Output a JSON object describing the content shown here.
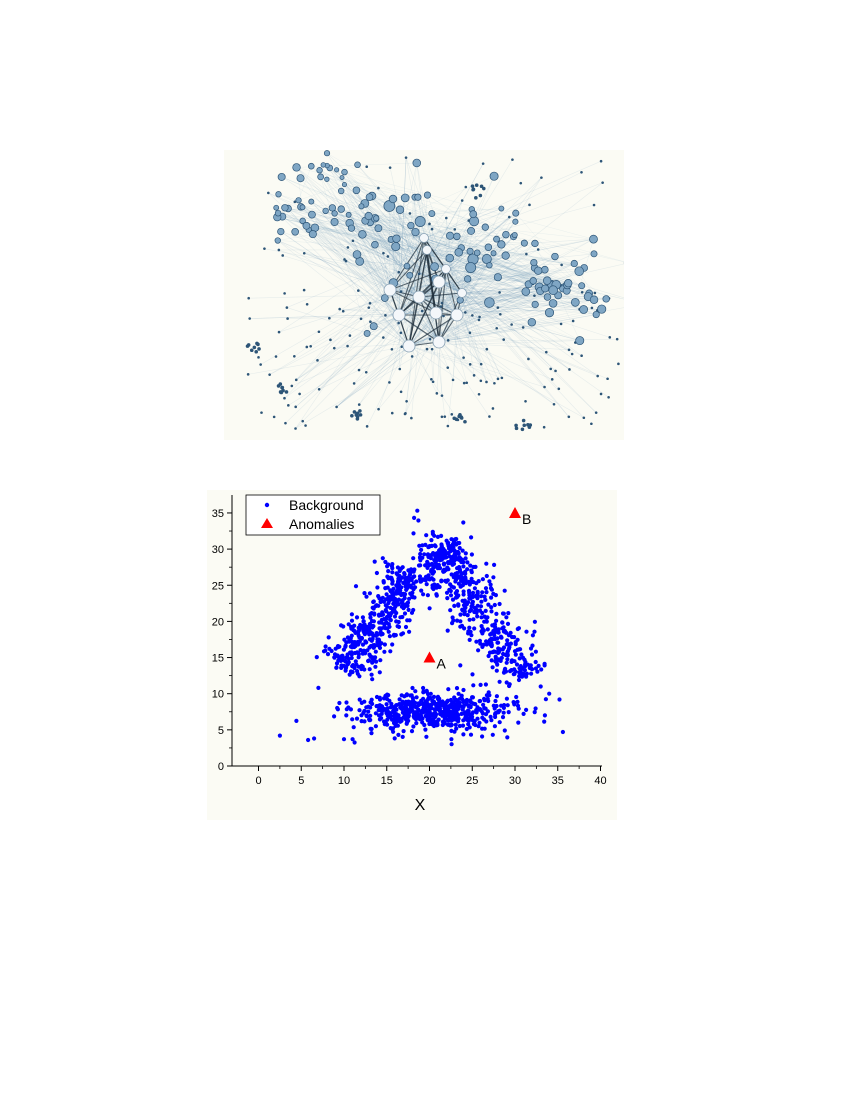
{
  "colors": {
    "page_background": "#ffffff",
    "figure_background": "#fbfbf4",
    "edge_blue": "#4f86ad",
    "node_fill": "#7fa6c4",
    "node_light": "#f4f7fa",
    "node_dark": "#2d5577",
    "background_points": "#0000ff",
    "anomaly_points": "#ff0000",
    "axis": "#000000"
  },
  "network_figure": {
    "type": "network graph",
    "labels": []
  },
  "chart_data": {
    "type": "scatter",
    "title": "",
    "xlabel": "X",
    "ylabel": "",
    "xlim": [
      -3,
      40
    ],
    "ylim": [
      0,
      37
    ],
    "xticks": [
      "0",
      "5",
      "10",
      "15",
      "20",
      "25",
      "30",
      "35",
      "40"
    ],
    "yticks": [
      "0",
      "5",
      "10",
      "15",
      "20",
      "25",
      "30",
      "35"
    ],
    "grid": false,
    "legend_position": "top-left",
    "series": [
      {
        "name": "Background",
        "marker": "circle",
        "color": "#0000ff",
        "distribution": {
          "left_arm": {
            "from": [
              10,
              13
            ],
            "to": [
              18,
              27
            ],
            "count": 430
          },
          "right_arm": {
            "from": [
              21,
              30
            ],
            "to": [
              31,
              12
            ],
            "count": 430
          },
          "top_peak": {
            "center": [
              21,
              29
            ],
            "count": 120
          },
          "bottom_band": {
            "x_range": [
              10,
              30
            ],
            "y_center": 7.5,
            "count": 560
          }
        },
        "outliers": [
          [
            2.5,
            4.2
          ],
          [
            5.8,
            3.6
          ],
          [
            6.5,
            3.8
          ],
          [
            7,
            10.8
          ],
          [
            10,
            3.7
          ],
          [
            11,
            3.7
          ],
          [
            33,
            11
          ],
          [
            34,
            10
          ],
          [
            35.2,
            9.2
          ],
          [
            35.6,
            4.7
          ],
          [
            33.5,
            7
          ],
          [
            31,
            7.2
          ]
        ]
      },
      {
        "name": "Anomalies",
        "marker": "triangle",
        "color": "#ff0000",
        "points": [
          {
            "x": 20,
            "y": 15,
            "label": "A"
          },
          {
            "x": 30,
            "y": 35,
            "label": "B"
          }
        ]
      }
    ]
  }
}
